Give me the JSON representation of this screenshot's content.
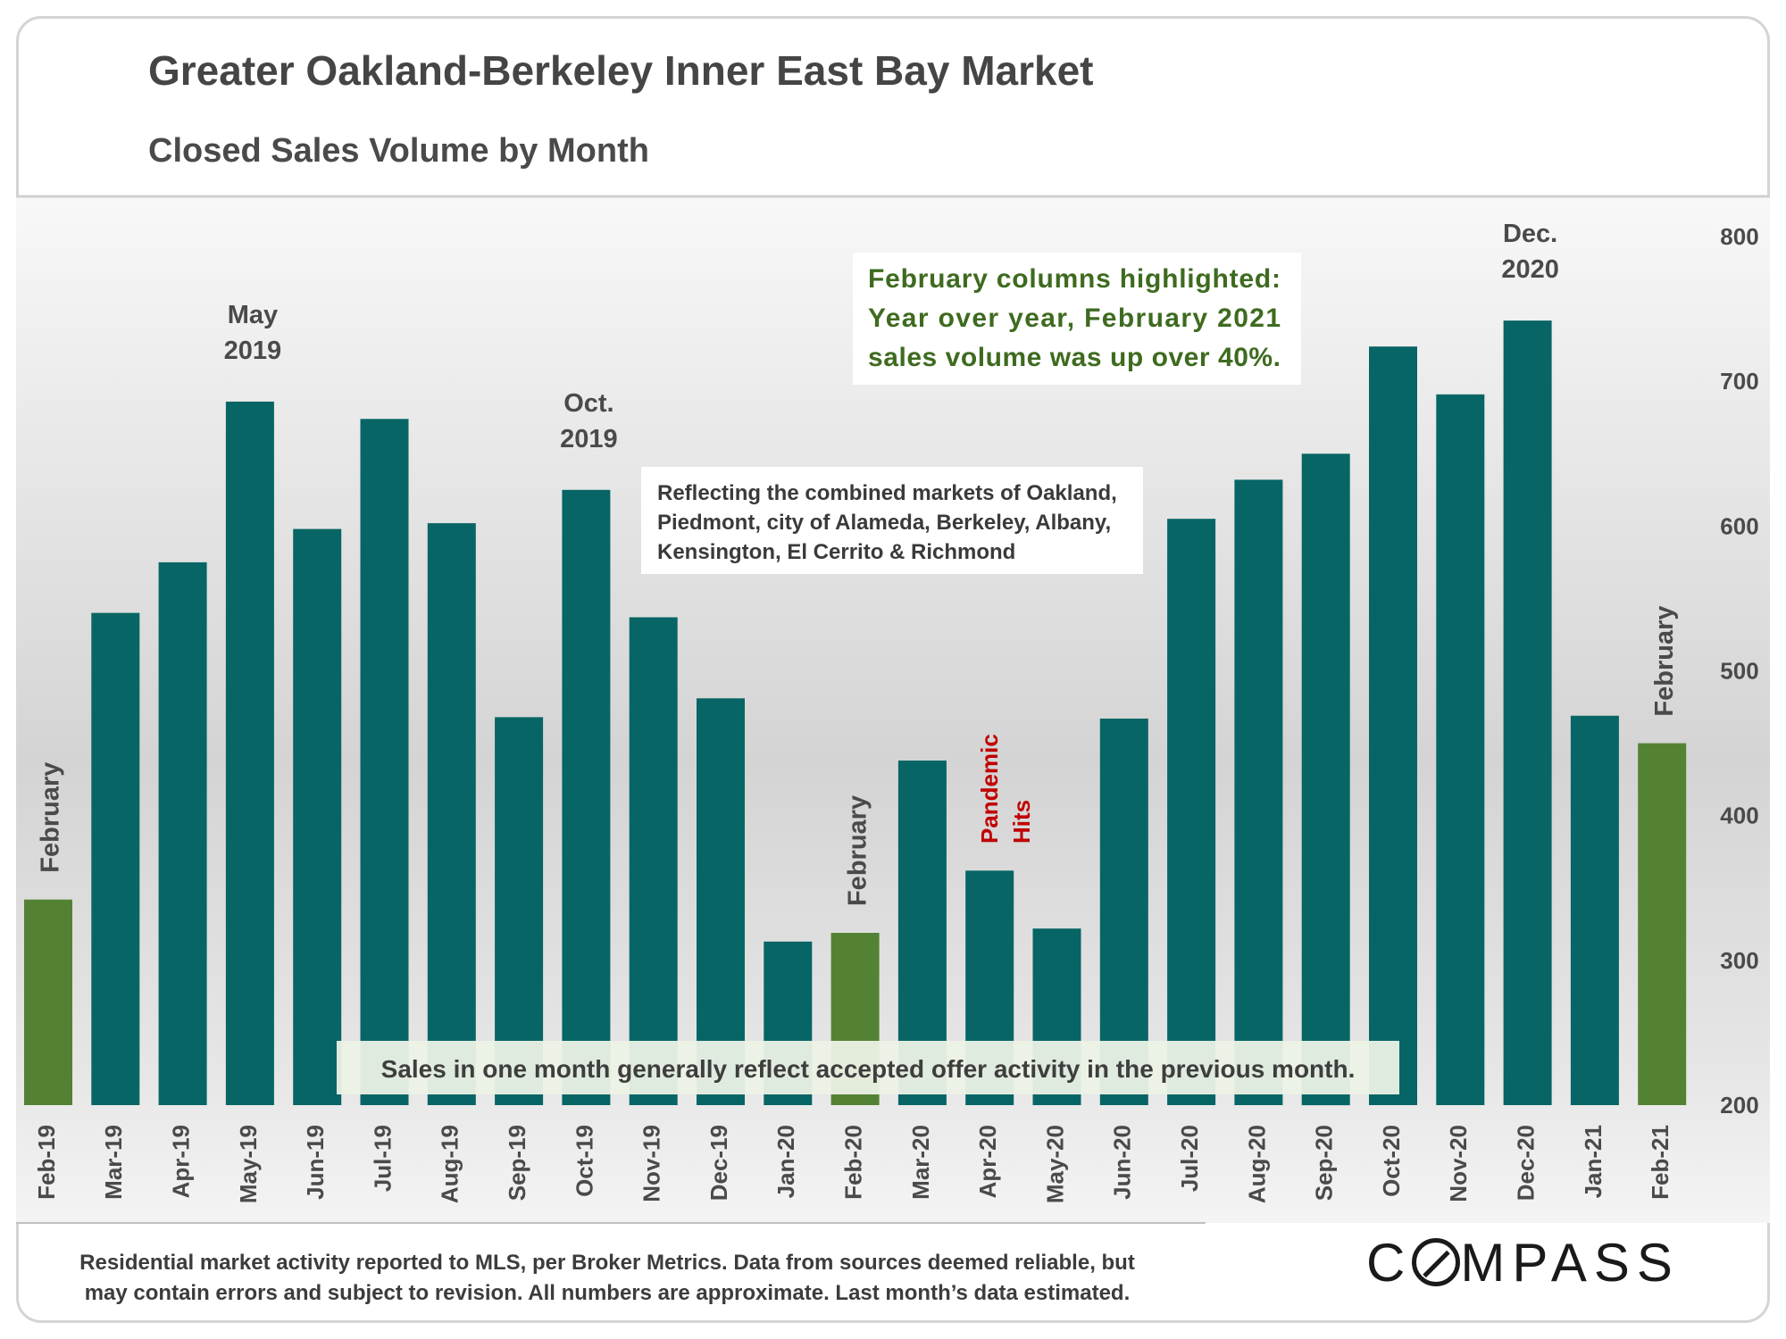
{
  "header": {
    "title": "Greater Oakland-Berkeley Inner East Bay Market",
    "subtitle": "Closed Sales Volume by Month"
  },
  "colors": {
    "bar": "#076565",
    "highlight": "#548235",
    "pandemic": "#c00000",
    "note_green": "#3e6b1f"
  },
  "chart_data": {
    "type": "bar",
    "title": "Closed Sales Volume by Month",
    "categories": [
      "Feb-19",
      "Mar-19",
      "Apr-19",
      "May-19",
      "Jun-19",
      "Jul-19",
      "Aug-19",
      "Sep-19",
      "Oct-19",
      "Nov-19",
      "Dec-19",
      "Jan-20",
      "Feb-20",
      "Mar-20",
      "Apr-20",
      "May-20",
      "Jun-20",
      "Jul-20",
      "Aug-20",
      "Sep-20",
      "Oct-20",
      "Nov-20",
      "Dec-20",
      "Jan-21",
      "Feb-21"
    ],
    "values": [
      342,
      540,
      575,
      686,
      598,
      674,
      602,
      468,
      625,
      537,
      481,
      313,
      319,
      438,
      362,
      322,
      467,
      605,
      632,
      650,
      724,
      691,
      742,
      469,
      450
    ],
    "highlighted": [
      true,
      false,
      false,
      false,
      false,
      false,
      false,
      false,
      false,
      false,
      false,
      false,
      true,
      false,
      false,
      false,
      false,
      false,
      false,
      false,
      false,
      false,
      false,
      false,
      true
    ],
    "ylim": [
      200,
      800
    ],
    "yticks": [
      "800",
      "700",
      "600",
      "500",
      "400",
      "300",
      "200"
    ],
    "y_axis_side": "right",
    "grid": false,
    "annotations": {
      "february_label": "February",
      "may_2019": [
        "May",
        "2019"
      ],
      "oct_2019": [
        "Oct.",
        "2019"
      ],
      "dec_2020": [
        "Dec.",
        "2020"
      ],
      "pandemic": [
        "Pandemic",
        "Hits"
      ],
      "highlight_note": [
        "February columns highlighted:",
        "Year over year, February 2021",
        "sales volume was up over 40%."
      ],
      "markets_note": [
        "Reflecting the combined markets of Oakland,",
        "Piedmont, city of Alameda, Berkeley, Albany,",
        "Kensington, El Cerrito & Richmond"
      ],
      "offer_note": "Sales in one month generally reflect accepted offer activity in the previous month."
    }
  },
  "footer": {
    "line1": "Residential market activity reported to MLS, per Broker Metrics. Data from sources deemed reliable, but",
    "line2": "may contain errors and subject to revision. All numbers are approximate. Last month’s data estimated."
  },
  "brand": {
    "pre": "C",
    "post": "MPASS"
  }
}
